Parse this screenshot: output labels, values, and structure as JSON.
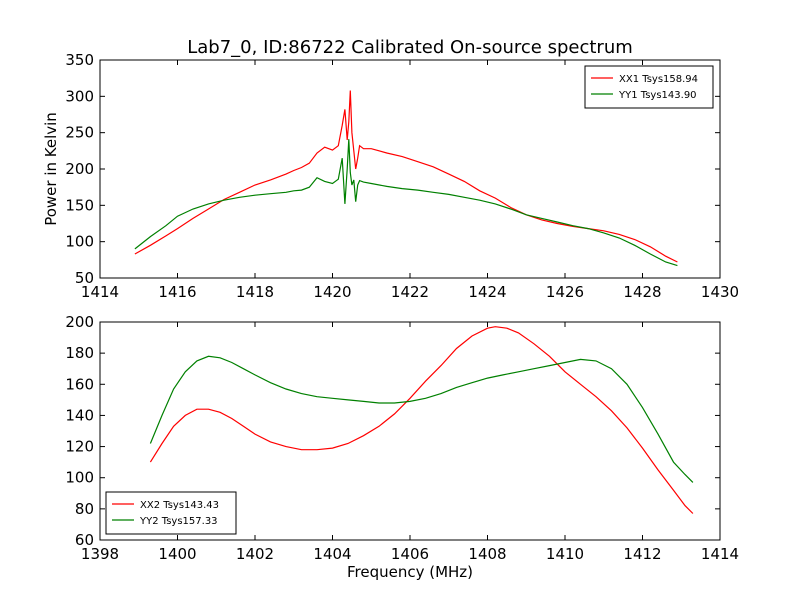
{
  "figure": {
    "title": "Lab7_0, ID:86722 Calibrated On-source spectrum"
  },
  "colors": {
    "red": "#ff0000",
    "green": "#008000"
  },
  "chart_data": [
    {
      "type": "line",
      "title": "Lab7_0, ID:86722 Calibrated On-source spectrum",
      "xlabel": "",
      "ylabel": "Power in Kelvin",
      "xlim": [
        1414,
        1430
      ],
      "ylim": [
        50,
        350
      ],
      "xticks": [
        1414,
        1416,
        1418,
        1420,
        1422,
        1424,
        1426,
        1428,
        1430
      ],
      "yticks": [
        50,
        100,
        150,
        200,
        250,
        300,
        350
      ],
      "grid": false,
      "legend_position": "top-right",
      "series": [
        {
          "name": "XX1 Tsys158.94",
          "color": "#ff0000",
          "x": [
            1414.9,
            1415.3,
            1415.7,
            1416.0,
            1416.4,
            1416.8,
            1417.2,
            1417.6,
            1418.0,
            1418.4,
            1418.8,
            1419.0,
            1419.2,
            1419.4,
            1419.6,
            1419.8,
            1420.0,
            1420.15,
            1420.25,
            1420.32,
            1420.38,
            1420.42,
            1420.46,
            1420.5,
            1420.55,
            1420.6,
            1420.65,
            1420.7,
            1420.8,
            1421.0,
            1421.4,
            1421.8,
            1422.2,
            1422.6,
            1423.0,
            1423.4,
            1423.8,
            1424.2,
            1424.6,
            1425.0,
            1425.4,
            1425.8,
            1426.2,
            1426.6,
            1427.0,
            1427.4,
            1427.8,
            1428.2,
            1428.6,
            1428.9
          ],
          "y": [
            83,
            95,
            108,
            118,
            132,
            145,
            158,
            168,
            178,
            185,
            193,
            198,
            202,
            208,
            222,
            230,
            226,
            232,
            260,
            282,
            240,
            265,
            308,
            250,
            225,
            200,
            215,
            232,
            228,
            228,
            222,
            217,
            210,
            203,
            193,
            183,
            170,
            160,
            147,
            137,
            130,
            125,
            121,
            118,
            115,
            110,
            103,
            93,
            80,
            72
          ]
        },
        {
          "name": "YY1 Tsys143.90",
          "color": "#008000",
          "x": [
            1414.9,
            1415.3,
            1415.7,
            1416.0,
            1416.4,
            1416.8,
            1417.2,
            1417.6,
            1418.0,
            1418.4,
            1418.8,
            1419.0,
            1419.2,
            1419.4,
            1419.6,
            1419.8,
            1420.0,
            1420.15,
            1420.25,
            1420.32,
            1420.38,
            1420.42,
            1420.46,
            1420.5,
            1420.55,
            1420.6,
            1420.65,
            1420.7,
            1420.8,
            1421.0,
            1421.4,
            1421.8,
            1422.2,
            1422.6,
            1423.0,
            1423.4,
            1423.8,
            1424.2,
            1424.6,
            1425.0,
            1425.4,
            1425.8,
            1426.2,
            1426.6,
            1427.0,
            1427.4,
            1427.8,
            1428.2,
            1428.6,
            1428.9
          ],
          "y": [
            90,
            107,
            122,
            135,
            145,
            152,
            157,
            161,
            164,
            166,
            168,
            170,
            171,
            175,
            188,
            183,
            180,
            186,
            215,
            152,
            200,
            241,
            195,
            178,
            185,
            155,
            178,
            184,
            182,
            180,
            176,
            173,
            171,
            168,
            165,
            161,
            157,
            152,
            145,
            137,
            132,
            127,
            122,
            118,
            112,
            105,
            95,
            83,
            72,
            67
          ]
        }
      ]
    },
    {
      "type": "line",
      "title": "",
      "xlabel": "Frequency (MHz)",
      "ylabel": "",
      "xlim": [
        1398,
        1414
      ],
      "ylim": [
        60,
        200
      ],
      "xticks": [
        1398,
        1400,
        1402,
        1404,
        1406,
        1408,
        1410,
        1412,
        1414
      ],
      "yticks": [
        60,
        80,
        100,
        120,
        140,
        160,
        180,
        200
      ],
      "grid": false,
      "legend_position": "bottom-left",
      "series": [
        {
          "name": "XX2 Tsys143.43",
          "color": "#ff0000",
          "x": [
            1399.3,
            1399.6,
            1399.9,
            1400.2,
            1400.5,
            1400.8,
            1401.1,
            1401.4,
            1401.7,
            1402.0,
            1402.4,
            1402.8,
            1403.2,
            1403.6,
            1404.0,
            1404.4,
            1404.8,
            1405.2,
            1405.6,
            1406.0,
            1406.4,
            1406.8,
            1407.2,
            1407.6,
            1408.0,
            1408.2,
            1408.5,
            1408.8,
            1409.2,
            1409.6,
            1410.0,
            1410.4,
            1410.8,
            1411.2,
            1411.6,
            1412.0,
            1412.4,
            1412.8,
            1413.1,
            1413.3
          ],
          "y": [
            110,
            122,
            133,
            140,
            144,
            144,
            142,
            138,
            133,
            128,
            123,
            120,
            118,
            118,
            119,
            122,
            127,
            133,
            141,
            151,
            162,
            172,
            183,
            191,
            196,
            197,
            196,
            193,
            186,
            178,
            168,
            160,
            152,
            143,
            132,
            119,
            105,
            92,
            82,
            77
          ]
        },
        {
          "name": "YY2 Tsys157.33",
          "color": "#008000",
          "x": [
            1399.3,
            1399.6,
            1399.9,
            1400.2,
            1400.5,
            1400.8,
            1401.1,
            1401.4,
            1401.7,
            1402.0,
            1402.4,
            1402.8,
            1403.2,
            1403.6,
            1404.0,
            1404.4,
            1404.8,
            1405.2,
            1405.6,
            1406.0,
            1406.4,
            1406.8,
            1407.2,
            1407.6,
            1408.0,
            1408.4,
            1408.8,
            1409.2,
            1409.6,
            1410.0,
            1410.4,
            1410.8,
            1411.2,
            1411.6,
            1412.0,
            1412.4,
            1412.8,
            1413.1,
            1413.3
          ],
          "y": [
            122,
            140,
            157,
            168,
            175,
            178,
            177,
            174,
            170,
            166,
            161,
            157,
            154,
            152,
            151,
            150,
            149,
            148,
            148,
            149,
            151,
            154,
            158,
            161,
            164,
            166,
            168,
            170,
            172,
            174,
            176,
            175,
            170,
            160,
            145,
            128,
            110,
            102,
            97
          ]
        }
      ]
    }
  ]
}
